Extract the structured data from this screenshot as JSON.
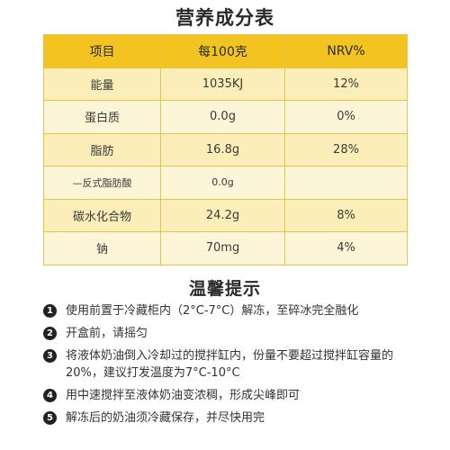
{
  "title": "营养成分表",
  "table": {
    "headers": [
      "项目",
      "每100克",
      "NRV%"
    ],
    "rows": [
      {
        "name": "能量",
        "per100g": "1035KJ",
        "nrv": "12%"
      },
      {
        "name": "蛋白质",
        "per100g": "0.0g",
        "nrv": "0%"
      },
      {
        "name": "脂肪",
        "per100g": "16.8g",
        "nrv": "28%"
      },
      {
        "name": "—反式脂肪酸",
        "per100g": "0.0g",
        "nrv": ""
      },
      {
        "name": "碳水化合物",
        "per100g": "24.2g",
        "nrv": "8%"
      },
      {
        "name": "钠",
        "per100g": "70mg",
        "nrv": "4%"
      }
    ]
  },
  "tips": {
    "title": "温馨提示",
    "items": [
      {
        "num": "1",
        "text": "使用前置于冷藏柜内（2°C-7°C）解冻，至碎冰完全融化"
      },
      {
        "num": "2",
        "text": "开盒前，请摇匀"
      },
      {
        "num": "3",
        "text": "将液体奶油倒入冷却过的搅拌缸内，份量不要超过搅拌缸容量的20%，建议打发温度为7°C-10°C"
      },
      {
        "num": "4",
        "text": "用中速搅拌至液体奶油变浓稠，形成尖峰即可"
      },
      {
        "num": "5",
        "text": "解冻后的奶油须冷藏保存，并尽快用完"
      }
    ]
  },
  "colors": {
    "header_bg": "#f3c320",
    "row_bg": "#fdf5d8",
    "row_alt_bg": "#fbeeb9",
    "border": "#e8c24a",
    "bullet_bg": "#222222"
  }
}
